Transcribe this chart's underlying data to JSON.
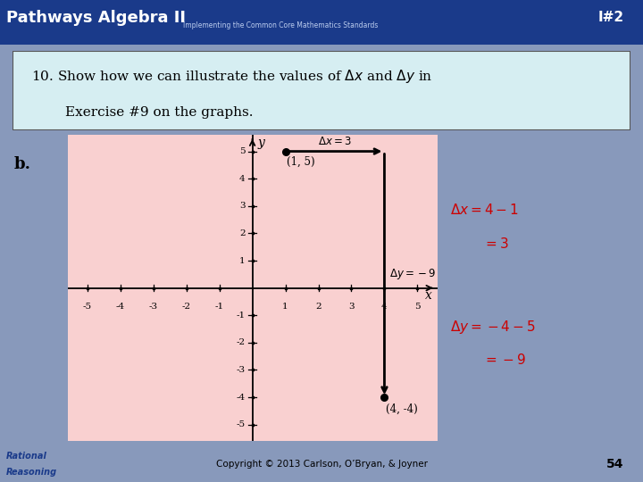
{
  "header_text": "Pathways Algebra II",
  "header_sub": "Implementing the Common Core Mathematics Standards",
  "slide_num": "I#2",
  "page_num": "54",
  "label_b": "b.",
  "point1": [
    1,
    5
  ],
  "point2": [
    4,
    -4
  ],
  "point1_label": "(1, 5)",
  "point2_label": "(4, -4)",
  "graph_bg": "#f9d0d0",
  "header_bg": "#1a3a8a",
  "title_box_bg": "#d6eef2",
  "red_color": "#cc0000",
  "copyright": "Copyright © 2013 Carlson, O’Bryan, & Joyner"
}
